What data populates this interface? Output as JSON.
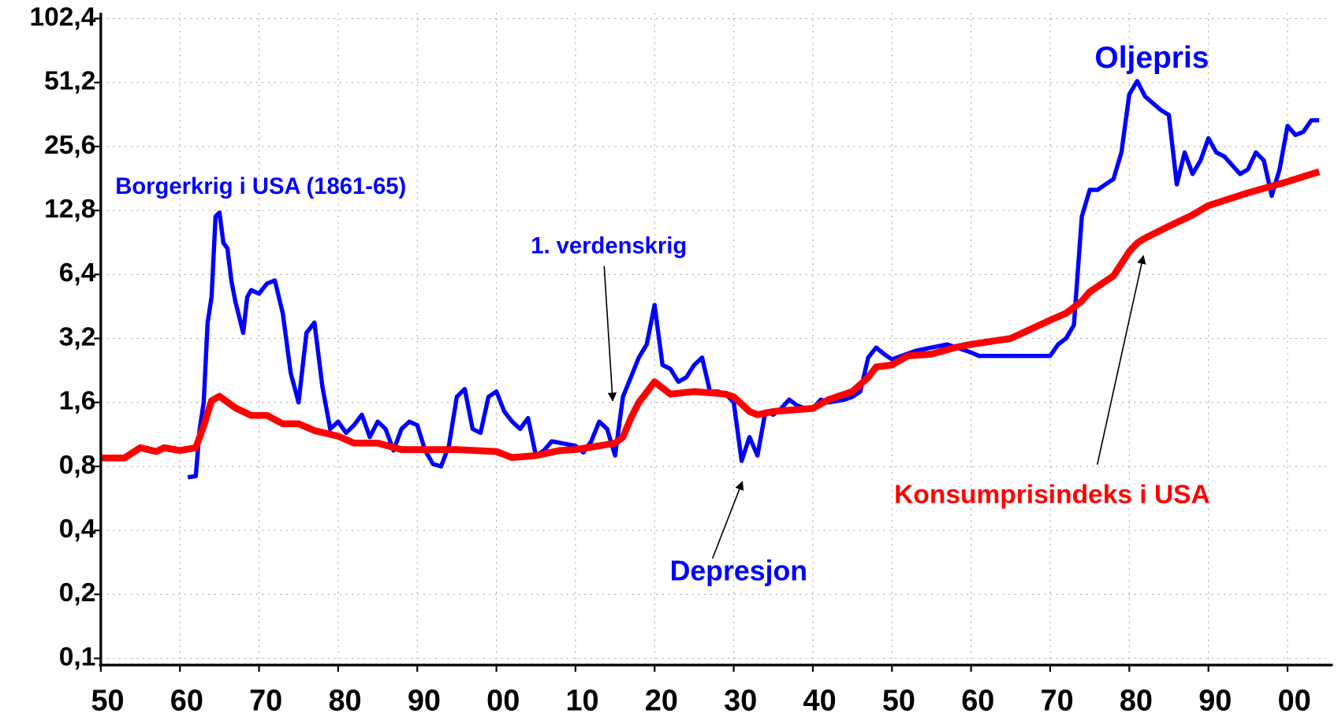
{
  "chart_data": {
    "type": "line",
    "log_y": true,
    "grid": true,
    "xlim": [
      1850,
      2005.5
    ],
    "ylim": [
      0.093,
      109
    ],
    "xticks": [
      {
        "value": 1850,
        "label": "50"
      },
      {
        "value": 1860,
        "label": "60"
      },
      {
        "value": 1870,
        "label": "70"
      },
      {
        "value": 1880,
        "label": "80"
      },
      {
        "value": 1890,
        "label": "90"
      },
      {
        "value": 1900,
        "label": "00"
      },
      {
        "value": 1910,
        "label": "10"
      },
      {
        "value": 1920,
        "label": "20"
      },
      {
        "value": 1930,
        "label": "30"
      },
      {
        "value": 1940,
        "label": "40"
      },
      {
        "value": 1950,
        "label": "50"
      },
      {
        "value": 1960,
        "label": "60"
      },
      {
        "value": 1970,
        "label": "70"
      },
      {
        "value": 1980,
        "label": "80"
      },
      {
        "value": 1990,
        "label": "90"
      },
      {
        "value": 2000,
        "label": "00"
      }
    ],
    "yticks": [
      {
        "value": 0.1,
        "label": "0,1"
      },
      {
        "value": 0.2,
        "label": "0,2"
      },
      {
        "value": 0.4,
        "label": "0,4"
      },
      {
        "value": 0.8,
        "label": "0,8"
      },
      {
        "value": 1.6,
        "label": "1,6"
      },
      {
        "value": 3.2,
        "label": "3,2"
      },
      {
        "value": 6.4,
        "label": "6,4"
      },
      {
        "value": 12.8,
        "label": "12,8"
      },
      {
        "value": 25.6,
        "label": "25,6"
      },
      {
        "value": 51.2,
        "label": "51,2"
      },
      {
        "value": 102.4,
        "label": "102,4"
      }
    ],
    "annotations": [
      "Oljepris",
      "Borgerkrig i USA (1861-65)",
      "1. verdenskrig",
      "Depresjon",
      "Konsumprisindeks i USA"
    ],
    "series": [
      {
        "color": "#0000ff",
        "x": [
          1861,
          1862,
          1862.5,
          1863,
          1863.5,
          1864,
          1864.5,
          1865,
          1865.5,
          1866,
          1866.5,
          1867,
          1868,
          1868.5,
          1869,
          1870,
          1871,
          1872,
          1873,
          1874,
          1875,
          1876,
          1877,
          1878,
          1879,
          1880,
          1881,
          1882,
          1883,
          1884,
          1885,
          1886,
          1887,
          1888,
          1889,
          1890,
          1891,
          1892,
          1893,
          1894,
          1895,
          1896,
          1897,
          1898,
          1899,
          1900,
          1901,
          1902,
          1903,
          1904,
          1905,
          1906,
          1907,
          1910,
          1911,
          1912,
          1913,
          1914,
          1915,
          1916,
          1917,
          1918,
          1919,
          1920,
          1921,
          1922,
          1923,
          1924,
          1925,
          1926,
          1927,
          1928,
          1929,
          1930,
          1931,
          1932,
          1933,
          1934,
          1935,
          1936,
          1937,
          1938,
          1939,
          1940,
          1941,
          1942,
          1944,
          1945,
          1946,
          1947,
          1948,
          1949,
          1950,
          1953,
          1957,
          1960,
          1961,
          1970,
          1971,
          1972,
          1973,
          1974,
          1975,
          1976,
          1977,
          1978,
          1979,
          1980,
          1981,
          1982,
          1984,
          1985,
          1986,
          1987,
          1988,
          1989,
          1990,
          1991,
          1992,
          1994,
          1995,
          1996,
          1997,
          1998,
          1999,
          2000,
          2001,
          2002,
          2003,
          2004
        ],
        "values": [
          0.71,
          0.72,
          1.2,
          1.6,
          3.8,
          5,
          12,
          12.5,
          9,
          8.5,
          6,
          4.8,
          3.4,
          5,
          5.4,
          5.2,
          5.8,
          6.0,
          4.2,
          2.2,
          1.6,
          3.4,
          3.8,
          1.9,
          1.2,
          1.3,
          1.15,
          1.25,
          1.4,
          1.1,
          1.3,
          1.2,
          0.95,
          1.2,
          1.3,
          1.25,
          0.95,
          0.82,
          0.8,
          1.0,
          1.7,
          1.85,
          1.2,
          1.15,
          1.7,
          1.8,
          1.45,
          1.3,
          1.2,
          1.35,
          0.9,
          0.95,
          1.05,
          1.0,
          0.93,
          1.05,
          1.3,
          1.2,
          0.9,
          1.7,
          2.1,
          2.6,
          3.0,
          4.6,
          2.4,
          2.3,
          2.0,
          2.1,
          2.4,
          2.6,
          1.8,
          1.8,
          1.75,
          1.6,
          0.85,
          1.1,
          0.9,
          1.45,
          1.4,
          1.5,
          1.65,
          1.55,
          1.5,
          1.5,
          1.65,
          1.6,
          1.65,
          1.7,
          1.8,
          2.6,
          2.9,
          2.7,
          2.55,
          2.8,
          3.0,
          2.75,
          2.65,
          2.65,
          3.0,
          3.2,
          3.7,
          12,
          16,
          16,
          17,
          18,
          24,
          45,
          52,
          44,
          38,
          36,
          17,
          24,
          19,
          22,
          28,
          24,
          23,
          19,
          20,
          24,
          22,
          15,
          20,
          32,
          29,
          30,
          34,
          34
        ]
      },
      {
        "color": "#ff0000",
        "x": [
          1850,
          1853,
          1855,
          1857,
          1858,
          1860,
          1862,
          1863,
          1864,
          1865,
          1867,
          1869,
          1871,
          1873,
          1875,
          1877,
          1880,
          1882,
          1885,
          1888,
          1890,
          1895,
          1900,
          1902,
          1905,
          1908,
          1910,
          1913,
          1915,
          1916,
          1917,
          1918,
          1920,
          1922,
          1925,
          1929,
          1930,
          1932,
          1933,
          1935,
          1940,
          1942,
          1945,
          1947,
          1948,
          1950,
          1952,
          1955,
          1958,
          1960,
          1965,
          1970,
          1972,
          1974,
          1975,
          1978,
          1980,
          1981,
          1982,
          1985,
          1988,
          1990,
          1995,
          2000,
          2004
        ],
        "values": [
          0.877,
          0.877,
          0.98,
          0.94,
          0.98,
          0.95,
          0.98,
          1.24,
          1.63,
          1.71,
          1.51,
          1.39,
          1.39,
          1.27,
          1.27,
          1.18,
          1.11,
          1.03,
          1.03,
          0.96,
          0.96,
          0.96,
          0.94,
          0.88,
          0.9,
          0.95,
          0.96,
          1.0,
          1.03,
          1.1,
          1.35,
          1.6,
          2.0,
          1.75,
          1.8,
          1.75,
          1.7,
          1.45,
          1.4,
          1.45,
          1.5,
          1.65,
          1.8,
          2.1,
          2.35,
          2.4,
          2.65,
          2.7,
          2.9,
          3.0,
          3.2,
          3.9,
          4.2,
          4.8,
          5.3,
          6.3,
          8.2,
          9.0,
          9.5,
          10.8,
          12.2,
          13.5,
          15.5,
          17.5,
          19.5
        ]
      }
    ]
  }
}
